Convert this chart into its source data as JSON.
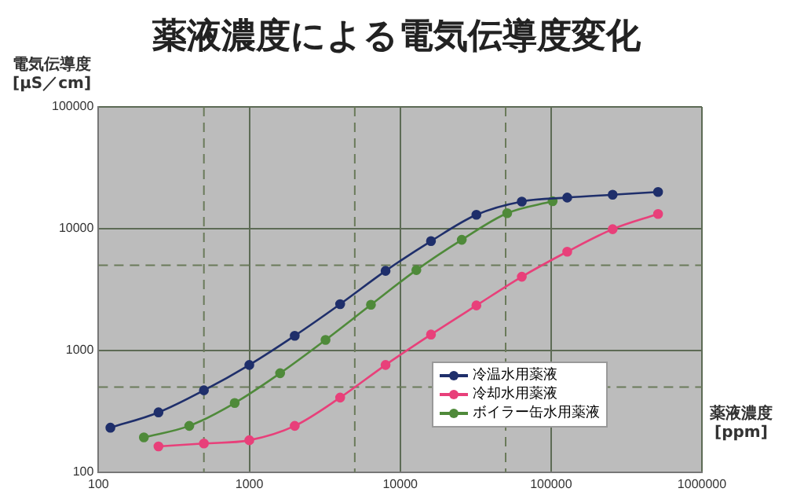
{
  "chart_data": {
    "type": "line",
    "title": "薬液濃度による電気伝導度変化",
    "ylabel": "電気伝導度\n[μS／cm]",
    "xlabel": "薬液濃度\n[ppm]",
    "log": "xy",
    "xlim": [
      100,
      1000000
    ],
    "xticks": [
      100,
      1000,
      10000,
      100000,
      1000000
    ],
    "ylim": [
      100,
      100000
    ],
    "yticks": [
      100,
      1000,
      10000,
      100000
    ],
    "grid": true,
    "legend": "bottom right",
    "marker": "circle",
    "line_style": "solid",
    "ref_lines": [
      {
        "axis": "x",
        "value": 500,
        "line_style": "dashed"
      },
      {
        "axis": "x",
        "value": 5000,
        "line_style": "dashed"
      },
      {
        "axis": "x",
        "value": 50000,
        "line_style": "dashed"
      },
      {
        "axis": "y",
        "value": 500,
        "line_style": "dashed"
      },
      {
        "axis": "y",
        "value": 5000,
        "line_style": "dashed"
      }
    ],
    "series": [
      {
        "name": "冷温水用薬液",
        "color": "#1f2f6b",
        "x": [
          120,
          250,
          500,
          1000,
          2000,
          4000,
          8000,
          16000,
          32000,
          64000,
          128000,
          256000,
          512000
        ],
        "values": [
          232,
          310,
          470,
          760,
          1320,
          2400,
          4500,
          7900,
          13000,
          16700,
          18000,
          19000,
          20000
        ]
      },
      {
        "name": "冷却水用薬液",
        "color": "#e8407a",
        "x": [
          250,
          500,
          1000,
          2000,
          4000,
          8000,
          16000,
          32000,
          64000,
          128000,
          256000,
          512000
        ],
        "values": [
          163,
          172,
          183,
          240,
          410,
          760,
          1350,
          2340,
          4030,
          6470,
          9900,
          13200
        ]
      },
      {
        "name": "ボイラー缶水用薬液",
        "color": "#4f8a3a",
        "x": [
          200,
          400,
          800,
          1600,
          3200,
          6400,
          12800,
          25600,
          51200,
          102400
        ],
        "values": [
          193,
          240,
          370,
          650,
          1220,
          2370,
          4570,
          8100,
          13400,
          16800
        ]
      }
    ]
  }
}
